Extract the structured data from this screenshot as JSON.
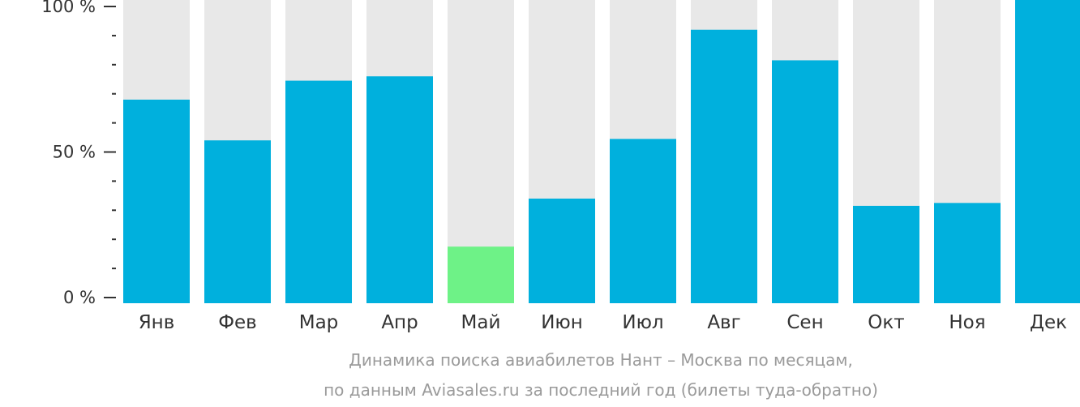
{
  "chart_data": {
    "type": "bar",
    "categories": [
      "Янв",
      "Фев",
      "Мар",
      "Апр",
      "Май",
      "Июн",
      "Июл",
      "Авг",
      "Сен",
      "Окт",
      "Ноя",
      "Дек"
    ],
    "values": [
      68,
      54,
      74.5,
      76,
      17.5,
      34,
      54.5,
      92,
      81.5,
      31.5,
      32.5,
      100
    ],
    "ylim": [
      0,
      100
    ],
    "y_tick_labels": [
      {
        "value": 0,
        "label": "0 %"
      },
      {
        "value": 50,
        "label": "50 %"
      },
      {
        "value": 100,
        "label": "100 %"
      }
    ],
    "y_minor_tick_step": 10,
    "background_bars": true,
    "highlight_index": 4,
    "colors": {
      "bar": "#00b0dd",
      "highlight_bar": "#6ef287",
      "background_bar": "#e8e8e8",
      "axis": "#333333",
      "caption": "#9a9a9a"
    },
    "caption": [
      "Динамика поиска авиабилетов Нант – Москва по месяцам,",
      "по данным Aviasales.ru за последний год (билеты туда-обратно)"
    ],
    "grid": false,
    "legend": false
  }
}
